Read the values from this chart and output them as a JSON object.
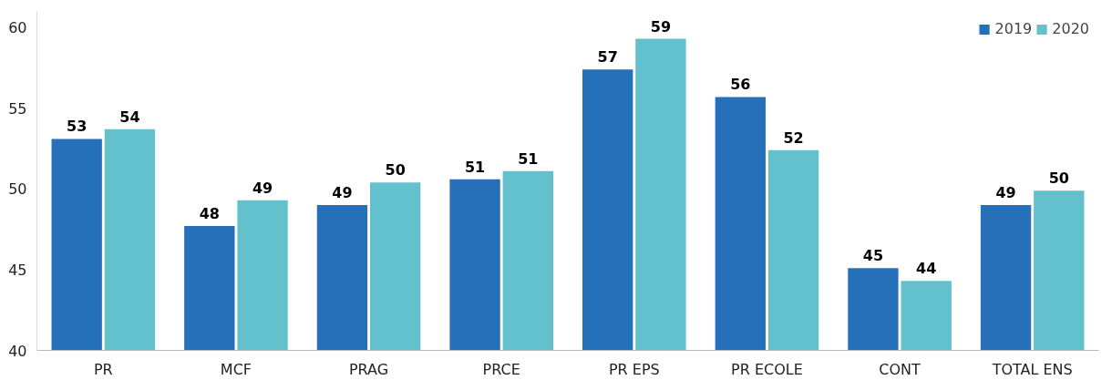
{
  "chart_data": {
    "type": "bar",
    "categories": [
      "PR",
      "MCF",
      "PRAG",
      "PRCE",
      "PR EPS",
      "PR ECOLE",
      "CONT",
      "TOTAL ENS"
    ],
    "series": [
      {
        "name": "2019",
        "color": "#2670b9",
        "values": [
          53.1,
          47.7,
          49.0,
          50.6,
          57.4,
          55.7,
          45.1,
          49.0
        ],
        "value_labels": [
          "53",
          "48",
          "49",
          "51",
          "57",
          "56",
          "45",
          "49"
        ]
      },
      {
        "name": "2020",
        "color": "#62c1cc",
        "values": [
          53.7,
          49.3,
          50.4,
          51.1,
          59.3,
          52.4,
          44.3,
          49.9
        ],
        "value_labels": [
          "54",
          "49",
          "50",
          "51",
          "59",
          "52",
          "44",
          "50"
        ]
      }
    ],
    "ylim": [
      40,
      61
    ],
    "yticks": [
      40,
      45,
      50,
      55,
      60
    ],
    "grid": false,
    "legend": "top right"
  }
}
